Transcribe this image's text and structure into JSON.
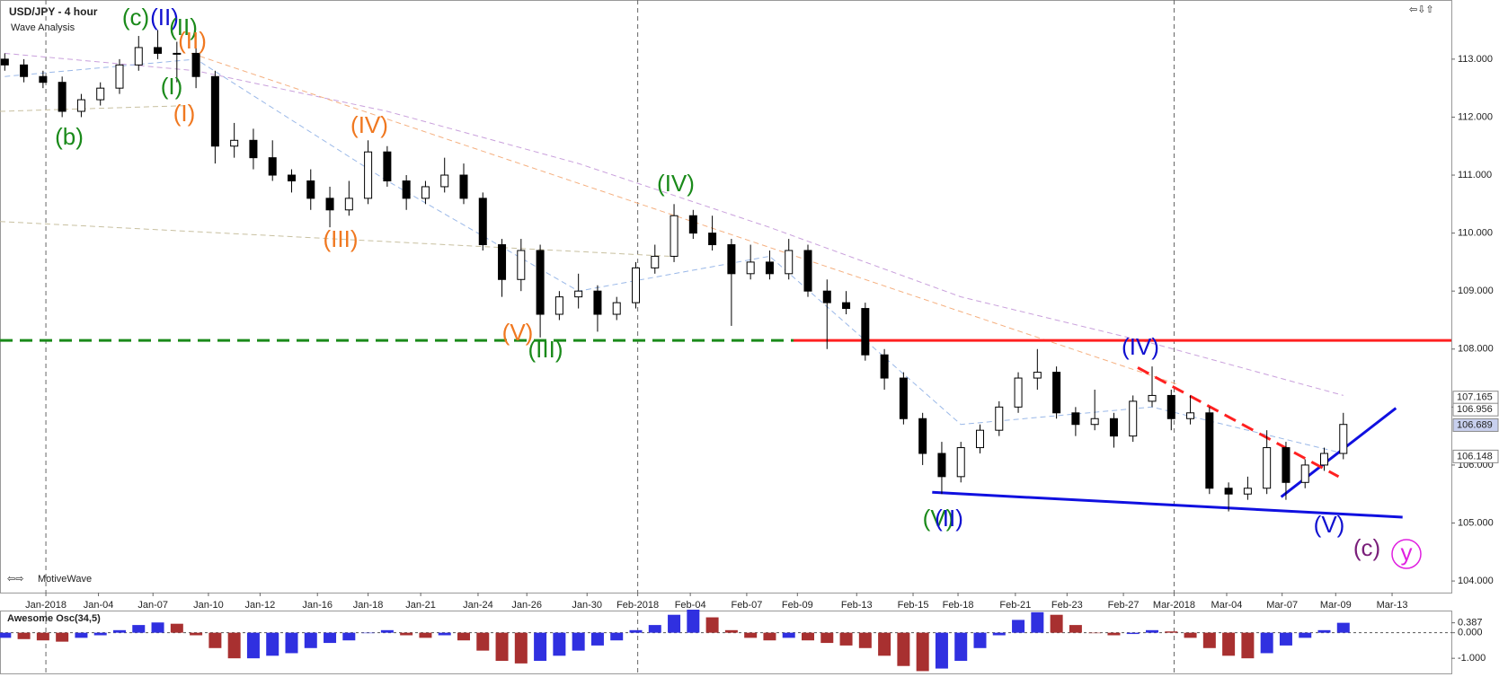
{
  "header": {
    "title": "USD/JPY - 4 hour",
    "subtitle": "Wave Analysis",
    "brand": "MotiveWave"
  },
  "chart_data": [
    {
      "type": "candlestick",
      "up_color": "#ffffff",
      "down_color": "#000000",
      "xlim": [
        -0.25,
        75.65
      ],
      "ylim": [
        103.8,
        114.02
      ],
      "yticks": [
        {
          "value": 113,
          "label": "113.000"
        },
        {
          "value": 112,
          "label": "112.000"
        },
        {
          "value": 111,
          "label": "111.000"
        },
        {
          "value": 110,
          "label": "110.000"
        },
        {
          "value": 109,
          "label": "109.000"
        },
        {
          "value": 108,
          "label": "108.000"
        },
        {
          "value": 107,
          "label": "107.000"
        },
        {
          "value": 106,
          "label": "106.000"
        },
        {
          "value": 105,
          "label": "105.000"
        },
        {
          "value": 104,
          "label": "104.000"
        }
      ],
      "xticks": [
        {
          "value": 2.15,
          "label": "Jan-2018"
        },
        {
          "value": 4.9,
          "label": "Jan-04"
        },
        {
          "value": 7.75,
          "label": "Jan-07"
        },
        {
          "value": 10.65,
          "label": "Jan-10"
        },
        {
          "value": 13.35,
          "label": "Jan-12"
        },
        {
          "value": 16.35,
          "label": "Jan-16"
        },
        {
          "value": 19,
          "label": "Jan-18"
        },
        {
          "value": 21.75,
          "label": "Jan-21"
        },
        {
          "value": 24.75,
          "label": "Jan-24"
        },
        {
          "value": 27.3,
          "label": "Jan-26"
        },
        {
          "value": 30.45,
          "label": "Jan-30"
        },
        {
          "value": 33.1,
          "label": "Feb-2018"
        },
        {
          "value": 35.85,
          "label": "Feb-04"
        },
        {
          "value": 38.8,
          "label": "Feb-07"
        },
        {
          "value": 41.45,
          "label": "Feb-09"
        },
        {
          "value": 44.55,
          "label": "Feb-13"
        },
        {
          "value": 47.5,
          "label": "Feb-15"
        },
        {
          "value": 49.85,
          "label": "Feb-18"
        },
        {
          "value": 52.85,
          "label": "Feb-21"
        },
        {
          "value": 55.55,
          "label": "Feb-23"
        },
        {
          "value": 58.5,
          "label": "Feb-27"
        },
        {
          "value": 61.15,
          "label": "Mar-2018"
        },
        {
          "value": 63.9,
          "label": "Mar-04"
        },
        {
          "value": 66.8,
          "label": "Mar-07"
        },
        {
          "value": 69.6,
          "label": "Mar-09"
        },
        {
          "value": 72.55,
          "label": "Mar-13"
        }
      ],
      "candles": [
        [
          113.0,
          113.1,
          112.8,
          112.9
        ],
        [
          112.9,
          113.0,
          112.6,
          112.7
        ],
        [
          112.7,
          112.8,
          112.5,
          112.6
        ],
        [
          112.6,
          112.7,
          112.0,
          112.1
        ],
        [
          112.1,
          112.4,
          112.0,
          112.3
        ],
        [
          112.3,
          112.6,
          112.2,
          112.5
        ],
        [
          112.5,
          113.0,
          112.4,
          112.9
        ],
        [
          112.9,
          113.4,
          112.8,
          113.2
        ],
        [
          113.2,
          113.5,
          113.0,
          113.1
        ],
        [
          113.1,
          113.3,
          112.6,
          113.1
        ],
        [
          113.1,
          113.2,
          112.5,
          112.7
        ],
        [
          112.7,
          112.8,
          111.2,
          111.5
        ],
        [
          111.5,
          111.9,
          111.3,
          111.6
        ],
        [
          111.6,
          111.8,
          111.1,
          111.3
        ],
        [
          111.3,
          111.6,
          110.9,
          111.0
        ],
        [
          111.0,
          111.1,
          110.7,
          110.9
        ],
        [
          110.9,
          111.1,
          110.4,
          110.6
        ],
        [
          110.6,
          110.8,
          110.1,
          110.4
        ],
        [
          110.4,
          110.9,
          110.3,
          110.6
        ],
        [
          110.6,
          111.6,
          110.5,
          111.4
        ],
        [
          111.4,
          111.5,
          110.8,
          110.9
        ],
        [
          110.9,
          111.0,
          110.4,
          110.6
        ],
        [
          110.6,
          110.9,
          110.5,
          110.8
        ],
        [
          110.8,
          111.3,
          110.7,
          111.0
        ],
        [
          111.0,
          111.2,
          110.5,
          110.6
        ],
        [
          110.6,
          110.7,
          109.7,
          109.8
        ],
        [
          109.8,
          109.9,
          108.9,
          109.2
        ],
        [
          109.2,
          109.9,
          109.0,
          109.7
        ],
        [
          109.7,
          109.8,
          108.2,
          108.6
        ],
        [
          108.6,
          109.0,
          108.5,
          108.9
        ],
        [
          108.9,
          109.3,
          108.7,
          109.0
        ],
        [
          109.0,
          109.1,
          108.3,
          108.6
        ],
        [
          108.6,
          108.9,
          108.5,
          108.8
        ],
        [
          108.8,
          109.5,
          108.7,
          109.4
        ],
        [
          109.4,
          109.8,
          109.3,
          109.6
        ],
        [
          109.6,
          110.5,
          109.5,
          110.3
        ],
        [
          110.3,
          110.4,
          109.9,
          110.0
        ],
        [
          110.0,
          110.3,
          109.7,
          109.8
        ],
        [
          109.8,
          109.9,
          108.4,
          109.3
        ],
        [
          109.3,
          109.8,
          109.2,
          109.5
        ],
        [
          109.5,
          109.7,
          109.2,
          109.3
        ],
        [
          109.3,
          109.9,
          109.2,
          109.7
        ],
        [
          109.7,
          109.8,
          108.9,
          109.0
        ],
        [
          109.0,
          109.2,
          108.0,
          108.8
        ],
        [
          108.8,
          109.0,
          108.6,
          108.7
        ],
        [
          108.7,
          108.8,
          107.8,
          107.9
        ],
        [
          107.9,
          108.0,
          107.3,
          107.5
        ],
        [
          107.5,
          107.6,
          106.7,
          106.8
        ],
        [
          106.8,
          106.9,
          106.0,
          106.2
        ],
        [
          106.2,
          106.4,
          105.5,
          105.8
        ],
        [
          105.8,
          106.4,
          105.7,
          106.3
        ],
        [
          106.3,
          106.7,
          106.2,
          106.6
        ],
        [
          106.6,
          107.1,
          106.5,
          107.0
        ],
        [
          107.0,
          107.6,
          106.9,
          107.5
        ],
        [
          107.5,
          108.0,
          107.3,
          107.6
        ],
        [
          107.6,
          107.7,
          106.8,
          106.9
        ],
        [
          106.9,
          107.0,
          106.5,
          106.7
        ],
        [
          106.7,
          107.3,
          106.6,
          106.8
        ],
        [
          106.8,
          106.9,
          106.3,
          106.5
        ],
        [
          106.5,
          107.2,
          106.4,
          107.1
        ],
        [
          107.1,
          107.7,
          107.0,
          107.2
        ],
        [
          107.2,
          107.3,
          106.6,
          106.8
        ],
        [
          106.8,
          107.2,
          106.7,
          106.9
        ],
        [
          106.9,
          107.0,
          105.5,
          105.6
        ],
        [
          105.6,
          105.7,
          105.2,
          105.5
        ],
        [
          105.5,
          105.8,
          105.4,
          105.6
        ],
        [
          105.6,
          106.6,
          105.5,
          106.3
        ],
        [
          106.3,
          106.4,
          105.4,
          105.7
        ],
        [
          105.7,
          106.1,
          105.6,
          106.0
        ],
        [
          106.0,
          106.3,
          105.9,
          106.2
        ],
        [
          106.2,
          106.9,
          106.1,
          106.7
        ]
      ],
      "lines": [
        {
          "color": "#c9a0dc",
          "style": "dashed",
          "x": [
            0,
            10,
            20,
            30,
            40,
            50,
            60,
            70
          ],
          "values": [
            113.1,
            112.8,
            112.1,
            111.2,
            110.1,
            108.9,
            108.1,
            107.2
          ]
        },
        {
          "color": "#9ab8e8",
          "style": "dashed",
          "x": [
            0,
            10,
            20,
            30,
            40,
            50,
            60,
            70
          ],
          "values": [
            112.7,
            113.0,
            110.9,
            109.0,
            109.6,
            106.7,
            107.0,
            106.2
          ]
        },
        {
          "color": "#f5b080",
          "style": "dashed",
          "x": [
            9.75,
            61.25
          ],
          "values": [
            113.1,
            107.4
          ]
        },
        {
          "color": "#c8c0a0",
          "style": "dashed",
          "x": [
            -0.25,
            34.75
          ],
          "values": [
            110.2,
            109.6
          ]
        },
        {
          "color": "#c8c0a0",
          "style": "dashed",
          "x": [
            -0.25,
            9.75
          ],
          "values": [
            112.1,
            112.2
          ]
        },
        {
          "color": "#1a8a1a",
          "style": "thick-dashed",
          "x": [
            -0.25,
            41.25
          ],
          "values": [
            108.15,
            108.15
          ]
        },
        {
          "color": "#ff2020",
          "style": "thick",
          "x": [
            41.25,
            75.65
          ],
          "values": [
            108.15,
            108.15
          ]
        },
        {
          "color": "#1010e0",
          "style": "thick",
          "x": [
            48.5,
            73.1
          ],
          "values": [
            105.53,
            105.1
          ]
        },
        {
          "color": "#1010e0",
          "style": "thick",
          "x": [
            66.75,
            72.75
          ],
          "values": [
            105.45,
            106.98
          ]
        },
        {
          "color": "#ff2020",
          "style": "thick-dashed",
          "x": [
            59.25,
            69.75
          ],
          "values": [
            107.68,
            105.8
          ]
        }
      ],
      "price_markers": [
        {
          "value": 107.165,
          "label": "107.165",
          "color": "#ffffff"
        },
        {
          "value": 106.956,
          "label": "106.956",
          "color": "#ffffff"
        },
        {
          "value": 106.689,
          "label": "106.689",
          "color": "#c8d0ee"
        },
        {
          "value": 106.148,
          "label": "106.148",
          "color": "#ffffff"
        }
      ],
      "annotations": [
        {
          "text": "(c)",
          "color": "#1a8a1a"
        },
        {
          "text": "(II)",
          "color": "#1010d0"
        },
        {
          "text": "(II)",
          "color": "#1a8a1a"
        },
        {
          "text": "(II)",
          "color": "#f07820"
        },
        {
          "text": "(b)",
          "color": "#1a8a1a"
        },
        {
          "text": "(I)",
          "color": "#1a8a1a"
        },
        {
          "text": "(I)",
          "color": "#f07820"
        },
        {
          "text": "(IV)",
          "color": "#f07820"
        },
        {
          "text": "(III)",
          "color": "#f07820"
        },
        {
          "text": "(IV)",
          "color": "#1a8a1a"
        },
        {
          "text": "(V)",
          "color": "#f07820"
        },
        {
          "text": "(III)",
          "color": "#1a8a1a"
        },
        {
          "text": "(V)",
          "color": "#1a8a1a"
        },
        {
          "text": "(II)",
          "color": "#1010d0"
        },
        {
          "text": "(IV)",
          "color": "#1010d0"
        },
        {
          "text": "(V)",
          "color": "#1010d0"
        },
        {
          "text": "(c)",
          "color": "#7a1f7a"
        },
        {
          "text": "y",
          "color": "#e020e0"
        }
      ]
    },
    {
      "type": "bar",
      "title": "Awesome Osc(34,5)",
      "up_color": "#3030e0",
      "down_color": "#a83030",
      "xlim": [
        -0.25,
        75.65
      ],
      "ylim": [
        -1.59,
        0.83
      ],
      "yticks": [
        0.387,
        {
          "value": 0,
          "label": "0.000"
        },
        {
          "value": -1,
          "label": "-1.000"
        }
      ],
      "x": [
        0,
        1,
        2,
        3,
        4,
        5,
        6,
        7,
        8,
        9,
        10,
        11,
        12,
        13,
        14,
        15,
        16,
        17,
        18,
        19,
        20,
        21,
        22,
        23,
        24,
        25,
        26,
        27,
        28,
        29,
        30,
        31,
        32,
        33,
        34,
        35,
        36,
        37,
        38,
        39,
        40,
        41,
        42,
        43,
        44,
        45,
        46,
        47,
        48,
        49,
        50,
        51,
        52,
        53,
        54,
        55,
        56,
        57,
        58,
        59,
        60,
        61,
        62,
        63,
        64,
        65,
        66,
        67,
        68,
        69,
        70
      ],
      "values": [
        -0.2,
        -0.25,
        -0.3,
        -0.35,
        -0.2,
        -0.1,
        0.1,
        0.3,
        0.4,
        0.35,
        -0.1,
        -0.6,
        -1.0,
        -1.0,
        -0.9,
        -0.8,
        -0.6,
        -0.4,
        -0.3,
        0.0,
        0.1,
        -0.1,
        -0.2,
        -0.1,
        -0.3,
        -0.7,
        -1.1,
        -1.2,
        -1.1,
        -0.9,
        -0.7,
        -0.5,
        -0.3,
        0.1,
        0.3,
        0.7,
        0.9,
        0.6,
        0.1,
        -0.2,
        -0.3,
        -0.2,
        -0.3,
        -0.4,
        -0.5,
        -0.6,
        -0.9,
        -1.3,
        -1.5,
        -1.4,
        -1.1,
        -0.6,
        -0.1,
        0.5,
        0.8,
        0.7,
        0.3,
        0.0,
        -0.1,
        -0.05,
        0.1,
        0.05,
        -0.2,
        -0.6,
        -0.9,
        -1.0,
        -0.8,
        -0.5,
        -0.2,
        0.1,
        0.387
      ]
    }
  ]
}
